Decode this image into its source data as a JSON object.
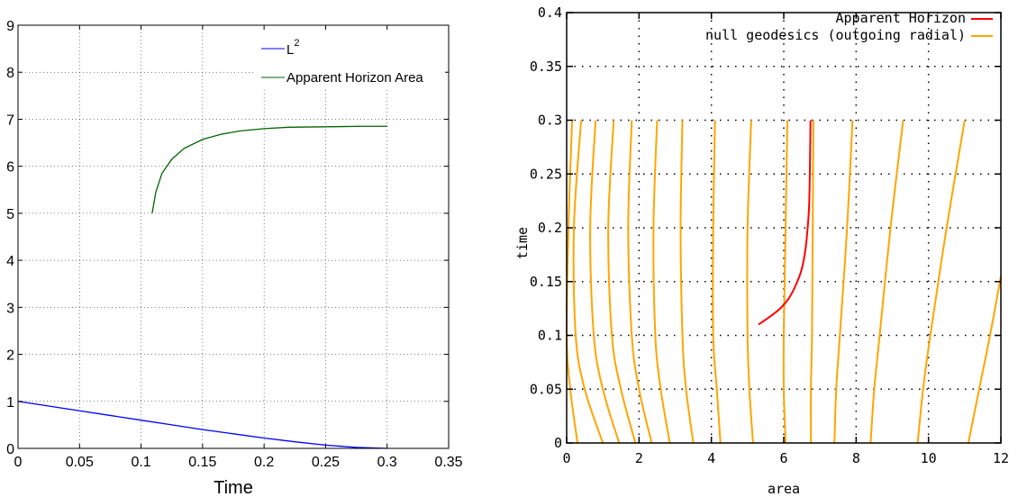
{
  "chart_data": [
    {
      "type": "line",
      "xlabel": "Time",
      "ylabel": "",
      "xlim": [
        0,
        0.35
      ],
      "ylim": [
        0,
        9
      ],
      "xticks": [
        0,
        0.05,
        0.1,
        0.15,
        0.2,
        0.25,
        0.3,
        0.35
      ],
      "xtick_labels": [
        "0",
        "0.05",
        "0.1",
        "0.15",
        "0.2",
        "0.25",
        "0.3",
        "0.35"
      ],
      "yticks": [
        0,
        1,
        2,
        3,
        4,
        5,
        6,
        7,
        8,
        9
      ],
      "ytick_labels": [
        "0",
        "1",
        "2",
        "3",
        "4",
        "5",
        "6",
        "7",
        "8",
        "9"
      ],
      "grid": true,
      "legend_position": "top-right",
      "legend_l2_base": "L",
      "legend_l2_sup": "2",
      "series": [
        {
          "name": "L²",
          "color": "#0000ff",
          "x": [
            0,
            0.025,
            0.05,
            0.075,
            0.1,
            0.125,
            0.15,
            0.175,
            0.2,
            0.225,
            0.25,
            0.275,
            0.3
          ],
          "y": [
            1.0,
            0.9,
            0.8,
            0.7,
            0.6,
            0.5,
            0.4,
            0.31,
            0.22,
            0.14,
            0.07,
            0.02,
            0.0
          ]
        },
        {
          "name": "Apparent Horizon Area",
          "color": "#006400",
          "x": [
            0.109,
            0.112,
            0.117,
            0.125,
            0.135,
            0.15,
            0.165,
            0.18,
            0.2,
            0.22,
            0.25,
            0.28,
            0.3
          ],
          "y": [
            5.0,
            5.45,
            5.85,
            6.15,
            6.38,
            6.57,
            6.68,
            6.75,
            6.8,
            6.83,
            6.84,
            6.85,
            6.85
          ]
        }
      ]
    },
    {
      "type": "line",
      "xlabel": "area",
      "ylabel": "time",
      "xlim": [
        0,
        12
      ],
      "ylim": [
        0,
        0.4
      ],
      "xticks": [
        0,
        2,
        4,
        6,
        8,
        10,
        12
      ],
      "xtick_labels": [
        "0",
        "2",
        "4",
        "6",
        "8",
        "10",
        "12"
      ],
      "yticks": [
        0,
        0.05,
        0.1,
        0.15,
        0.2,
        0.25,
        0.3,
        0.35,
        0.4
      ],
      "ytick_labels": [
        "0",
        "0.05",
        "0.1",
        "0.15",
        "0.2",
        "0.25",
        "0.3",
        "0.35",
        "0.4"
      ],
      "grid": true,
      "legend_position": "top-right",
      "horizon": {
        "name": "Apparent Horizon",
        "color": "#ff0000",
        "area": [
          5.3,
          5.6,
          5.9,
          6.15,
          6.35,
          6.5,
          6.6,
          6.66,
          6.7,
          6.72,
          6.73,
          6.74
        ],
        "time": [
          0.11,
          0.117,
          0.125,
          0.135,
          0.148,
          0.162,
          0.18,
          0.2,
          0.22,
          0.25,
          0.275,
          0.3
        ]
      },
      "geodesics": {
        "name": "null geodesics (outgoing radial)",
        "color": "#ffa500",
        "curves": [
          {
            "area": [
              0.3,
              0.1,
              0.0,
              0.05,
              0.15
            ],
            "time": [
              0.0,
              0.05,
              0.1,
              0.2,
              0.3
            ]
          },
          {
            "area": [
              1.0,
              0.5,
              0.25,
              0.2,
              0.4
            ],
            "time": [
              0.0,
              0.05,
              0.1,
              0.2,
              0.3
            ]
          },
          {
            "area": [
              1.45,
              1.0,
              0.75,
              0.65,
              0.8
            ],
            "time": [
              0.0,
              0.05,
              0.1,
              0.2,
              0.3
            ]
          },
          {
            "area": [
              1.9,
              1.5,
              1.25,
              1.15,
              1.3
            ],
            "time": [
              0.0,
              0.05,
              0.1,
              0.2,
              0.3
            ]
          },
          {
            "area": [
              2.35,
              2.0,
              1.8,
              1.7,
              1.8
            ],
            "time": [
              0.0,
              0.05,
              0.1,
              0.2,
              0.3
            ]
          },
          {
            "area": [
              2.85,
              2.6,
              2.45,
              2.4,
              2.5
            ],
            "time": [
              0.0,
              0.05,
              0.1,
              0.2,
              0.3
            ]
          },
          {
            "area": [
              3.5,
              3.3,
              3.2,
              3.15,
              3.2
            ],
            "time": [
              0.0,
              0.05,
              0.1,
              0.2,
              0.3
            ]
          },
          {
            "area": [
              4.25,
              4.15,
              4.05,
              4.05,
              4.1
            ],
            "time": [
              0.0,
              0.05,
              0.1,
              0.2,
              0.3
            ]
          },
          {
            "area": [
              5.15,
              5.05,
              5.0,
              5.0,
              5.1
            ],
            "time": [
              0.0,
              0.05,
              0.1,
              0.2,
              0.3
            ]
          },
          {
            "area": [
              6.05,
              6.0,
              6.0,
              6.05,
              6.1
            ],
            "time": [
              0.0,
              0.05,
              0.1,
              0.2,
              0.3
            ]
          },
          {
            "area": [
              6.75,
              6.75,
              6.78,
              6.8,
              6.82
            ],
            "time": [
              0.0,
              0.05,
              0.1,
              0.2,
              0.3
            ]
          },
          {
            "area": [
              7.4,
              7.45,
              7.55,
              7.75,
              7.9
            ],
            "time": [
              0.0,
              0.05,
              0.1,
              0.2,
              0.3
            ]
          },
          {
            "area": [
              8.4,
              8.5,
              8.65,
              8.95,
              9.3
            ],
            "time": [
              0.0,
              0.05,
              0.1,
              0.2,
              0.3
            ]
          },
          {
            "area": [
              9.7,
              9.85,
              10.05,
              10.5,
              11.0
            ],
            "time": [
              0.0,
              0.05,
              0.1,
              0.2,
              0.3
            ]
          },
          {
            "area": [
              11.1,
              11.4,
              11.7,
              12.0
            ],
            "time": [
              0.0,
              0.05,
              0.1,
              0.155
            ]
          }
        ]
      }
    }
  ]
}
